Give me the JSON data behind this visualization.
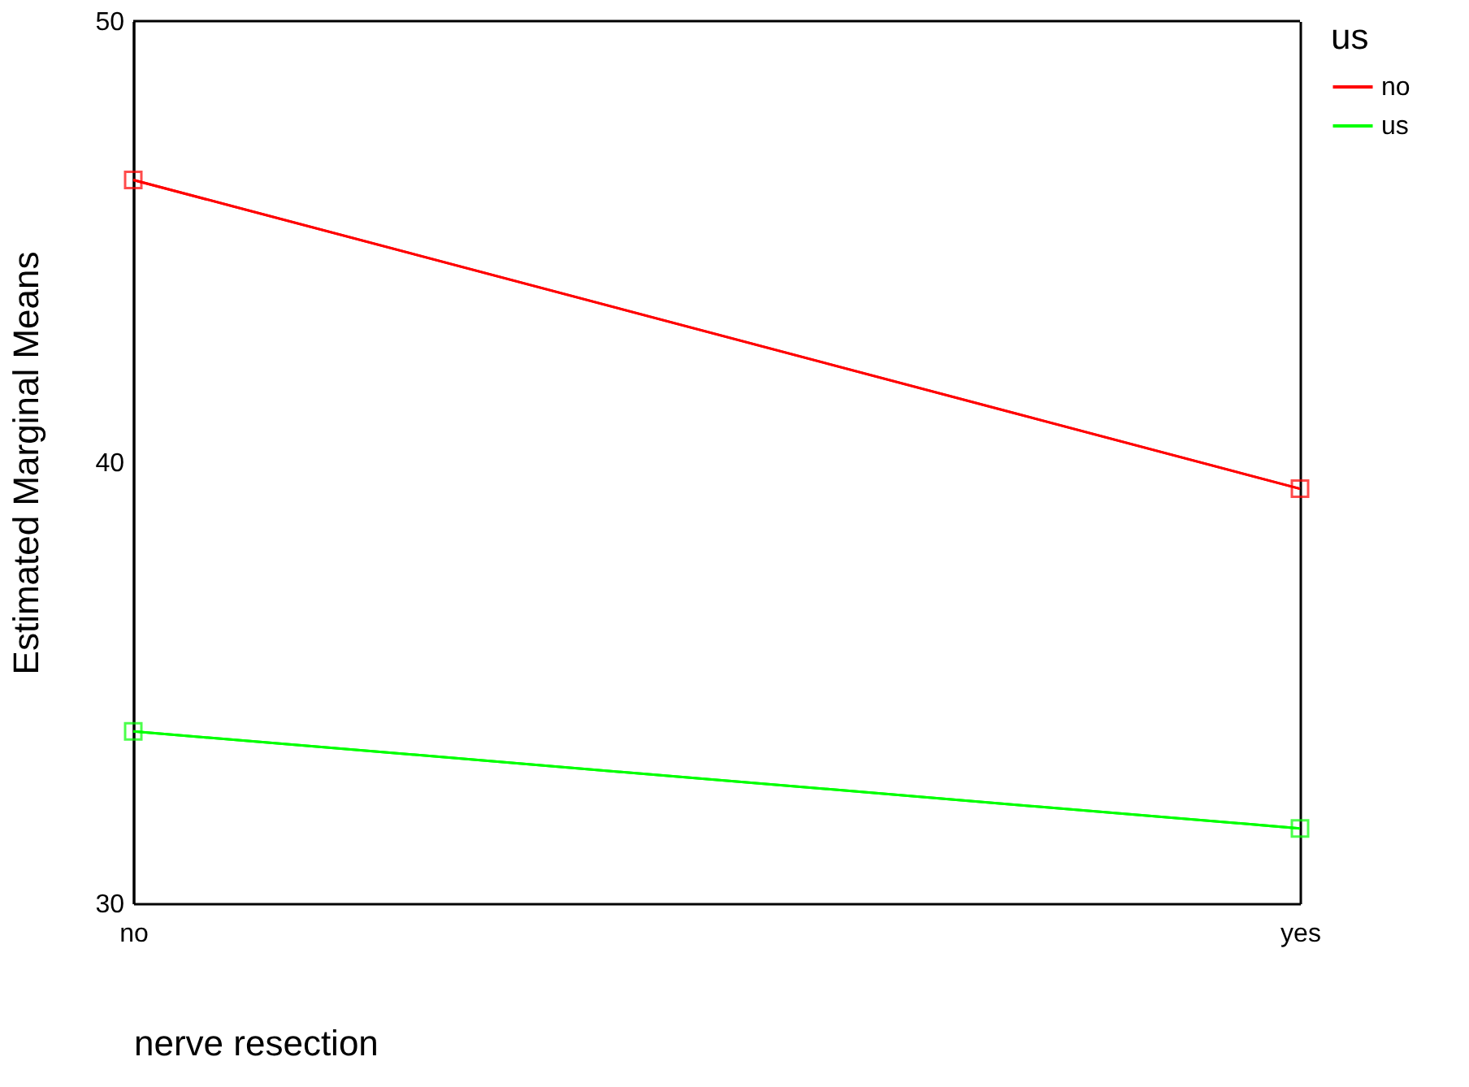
{
  "chart_data": {
    "type": "line",
    "xlabel": "nerve resection",
    "ylabel": "Estimated Marginal Means",
    "legend_title": "us",
    "categories": [
      "no",
      "yes"
    ],
    "series": [
      {
        "name": "no",
        "color": "#ff0000",
        "values": [
          46.4,
          39.4
        ]
      },
      {
        "name": "us",
        "color": "#00ff00",
        "values": [
          33.9,
          31.7
        ]
      }
    ],
    "ylim": [
      30,
      50
    ],
    "yticks": [
      30,
      40,
      50
    ],
    "grid": "x",
    "legend": "right",
    "marker": "square",
    "line_style": "solid"
  }
}
